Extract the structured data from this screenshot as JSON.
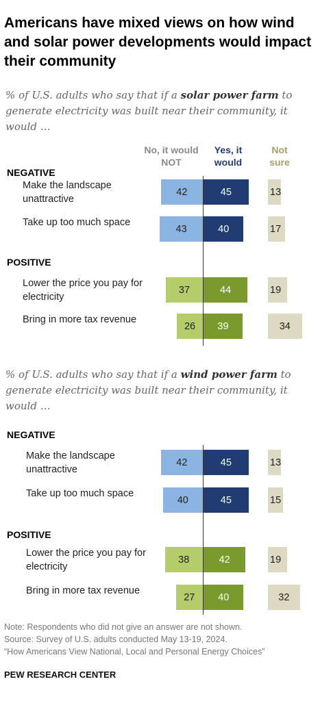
{
  "title": "Americans have mixed views on how wind and solar power developments would impact their community",
  "colors": {
    "no": "#8cb4e2",
    "yes": "#203c72",
    "no_pos": "#b5cc6a",
    "yes_pos": "#7a9a2e",
    "notsure": "#ddd9c3"
  },
  "chart_data": [
    {
      "type": "bar",
      "subtitle_pre": "% of U.S. adults who say that if a ",
      "subtitle_bold": "solar power farm",
      "subtitle_post": " to generate electricity was built near their community, it would …",
      "columns": {
        "no": "No, it would NOT",
        "yes": "Yes, it would",
        "notsure": "Not sure"
      },
      "groups": [
        {
          "label": "NEGATIVE",
          "rows": [
            {
              "label": "Make the landscape unattractive",
              "no": 42,
              "yes": 45,
              "notsure": 13
            },
            {
              "label": "Take up too much space",
              "no": 43,
              "yes": 40,
              "notsure": 17
            }
          ]
        },
        {
          "label": "POSITIVE",
          "rows": [
            {
              "label": "Lower the price you pay for electricity",
              "no": 37,
              "yes": 44,
              "notsure": 19
            },
            {
              "label": "Bring in more tax revenue",
              "no": 26,
              "yes": 39,
              "notsure": 34
            }
          ]
        }
      ]
    },
    {
      "type": "bar",
      "subtitle_pre": "% of U.S. adults who say that if a ",
      "subtitle_bold": "wind power farm",
      "subtitle_post": " to generate electricity was built near their community, it would …",
      "groups": [
        {
          "label": "NEGATIVE",
          "rows": [
            {
              "label": "Make the landscape unattractive",
              "no": 42,
              "yes": 45,
              "notsure": 13
            },
            {
              "label": "Take up too much space",
              "no": 40,
              "yes": 45,
              "notsure": 15
            }
          ]
        },
        {
          "label": "POSITIVE",
          "rows": [
            {
              "label": "Lower the price you pay for electricity",
              "no": 38,
              "yes": 42,
              "notsure": 19
            },
            {
              "label": "Bring in more tax revenue",
              "no": 27,
              "yes": 40,
              "notsure": 32
            }
          ]
        }
      ]
    }
  ],
  "notes": [
    "Note: Respondents who did not give an answer are not shown.",
    "Source: Survey of U.S. adults conducted May 13-19, 2024.",
    "“How Americans View National, Local and Personal Energy Choices”"
  ],
  "source_brand": "PEW RESEARCH CENTER"
}
